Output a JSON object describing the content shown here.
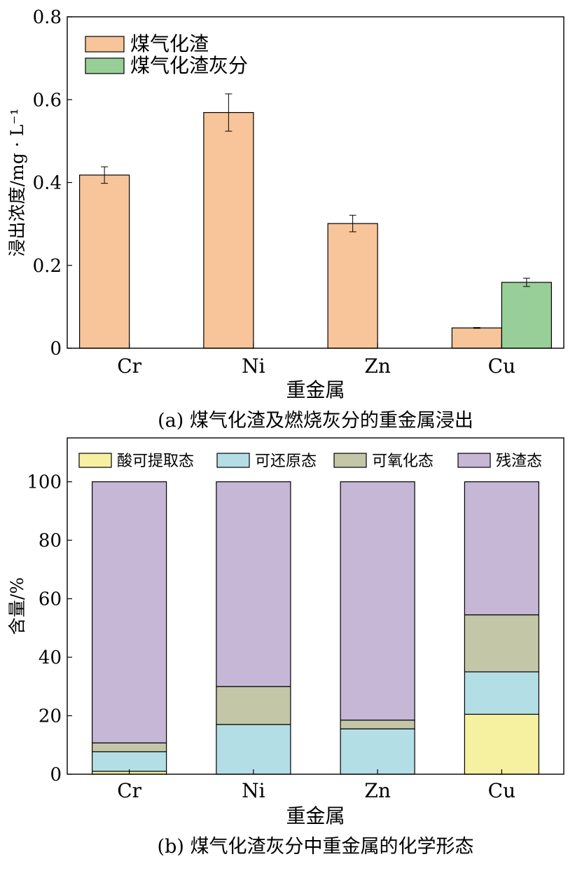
{
  "chart_data": [
    {
      "type": "bar",
      "caption": "(a) 煤气化渣及燃烧灰分的重金属浸出",
      "xlabel": "重金属",
      "ylabel": "浸出浓度/mg · L⁻¹",
      "categories": [
        "Cr",
        "Ni",
        "Zn",
        "Cu"
      ],
      "ylim": [
        0,
        0.8
      ],
      "yticks": [
        0,
        0.2,
        0.4,
        0.6,
        0.8
      ],
      "ytick_labels": [
        "0",
        "0.2",
        "0.4",
        "0.6",
        "0.8"
      ],
      "legend_position": "top-left",
      "series": [
        {
          "name": "煤气化渣",
          "color": "#f7c599",
          "values": [
            0.418,
            0.569,
            0.301,
            0.049
          ],
          "errors": [
            0.02,
            0.045,
            0.02,
            0.001
          ]
        },
        {
          "name": "煤气化渣灰分",
          "color": "#98cf98",
          "values": [
            null,
            null,
            null,
            0.159
          ],
          "errors": [
            null,
            null,
            null,
            0.01
          ]
        }
      ]
    },
    {
      "type": "stacked-bar",
      "caption": "(b) 煤气化渣灰分中重金属的化学形态",
      "xlabel": "重金属",
      "ylabel": "含量/%",
      "categories": [
        "Cr",
        "Ni",
        "Zn",
        "Cu"
      ],
      "ylim": [
        0,
        115
      ],
      "yticks": [
        0,
        20,
        40,
        60,
        80,
        100
      ],
      "ytick_labels": [
        "0",
        "20",
        "40",
        "60",
        "80",
        "100"
      ],
      "legend_position": "top",
      "series": [
        {
          "name": "酸可提取态",
          "color": "#f5f1a1",
          "values": [
            1.0,
            0,
            0,
            20.5
          ]
        },
        {
          "name": "可还原态",
          "color": "#b4dee6",
          "values": [
            6.7,
            17.0,
            15.5,
            14.5
          ]
        },
        {
          "name": "可氧化态",
          "color": "#c4c6a8",
          "values": [
            3.0,
            13.0,
            3.0,
            19.5
          ]
        },
        {
          "name": "残渣态",
          "color": "#c6b7d6",
          "values": [
            89.3,
            70.0,
            81.5,
            45.5
          ]
        }
      ]
    }
  ]
}
